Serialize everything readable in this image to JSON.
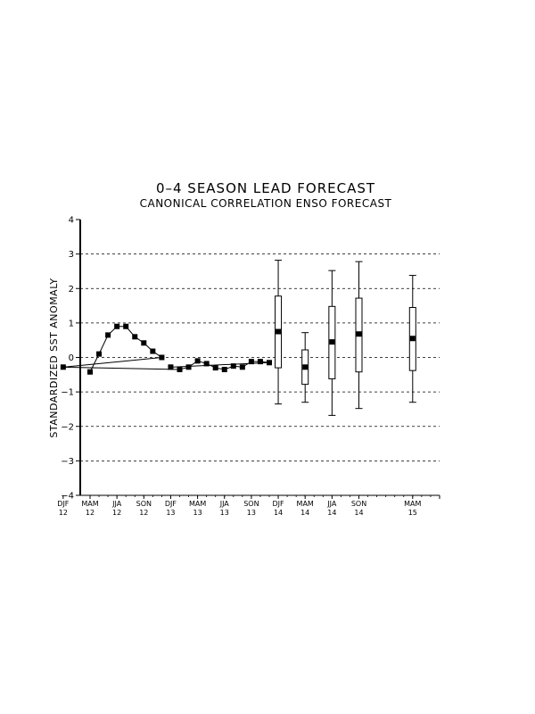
{
  "chart_data": {
    "type": "line",
    "title": "0–4 SEASON LEAD FORECAST",
    "subtitle": "CANONICAL CORRELATION ENSO FORECAST",
    "ylabel": "STANDARDIZED SST ANOMALY",
    "xlabel": "",
    "ylim": [
      -4,
      4
    ],
    "yticks": [
      "4",
      "3",
      "2",
      "1",
      "0",
      "−1",
      "−2",
      "−3",
      "−4"
    ],
    "grid": "dashed horizontal lines at y = -3, -2, -1, 0, 1, 2, 3",
    "x_tick_labels": [
      {
        "season": "MAM",
        "year": "12"
      },
      {
        "season": "JJA",
        "year": "12"
      },
      {
        "season": "SON",
        "year": "12"
      },
      {
        "season": "DJF",
        "year": "12"
      },
      {
        "season": "MAM",
        "year": "13"
      },
      {
        "season": "JJA",
        "year": "13"
      },
      {
        "season": "SON",
        "year": "13"
      },
      {
        "season": "DJF",
        "year": "13"
      },
      {
        "season": "MAM",
        "year": "14"
      },
      {
        "season": "JJA",
        "year": "14"
      },
      {
        "season": "SON",
        "year": "14"
      },
      {
        "season": "DJF",
        "year": "14"
      },
      {
        "season": "MAM",
        "year": "15"
      }
    ],
    "observed": {
      "x": [
        "MAM 12",
        "AMJ 12",
        "MJJ 12",
        "JJA 12",
        "JAS 12",
        "ASO 12",
        "SON 12",
        "OND 12",
        "NDJ 12",
        "DJF 12",
        "JFM 13",
        "FMA 13",
        "MAM 13",
        "AMJ 13",
        "MJJ 13",
        "JJA 13",
        "JAS 13",
        "ASO 13",
        "SON 13",
        "OND 13",
        "NDJ 13",
        "DJF 13"
      ],
      "values": [
        -0.42,
        0.1,
        0.65,
        0.9,
        0.9,
        0.6,
        0.42,
        0.18,
        0.0,
        -0.28,
        -0.35,
        -0.28,
        -0.1,
        -0.18,
        -0.3,
        -0.35,
        -0.25,
        -0.28,
        -0.12,
        -0.12,
        -0.15,
        -0.28
      ]
    },
    "forecast": {
      "x": [
        "MAM 14",
        "JJA 14",
        "SON 14",
        "DJF 14",
        "MAM 15"
      ],
      "median": [
        -0.28,
        0.45,
        0.68,
        0.75,
        0.55
      ],
      "box_low": [
        -0.78,
        -0.62,
        -0.42,
        -0.3,
        -0.38
      ],
      "box_high": [
        0.22,
        1.48,
        1.72,
        1.78,
        1.45
      ],
      "whisker_low": [
        -1.3,
        -1.68,
        -1.48,
        -1.35,
        -1.3
      ],
      "whisker_high": [
        0.72,
        2.52,
        2.78,
        2.82,
        2.38
      ]
    }
  }
}
